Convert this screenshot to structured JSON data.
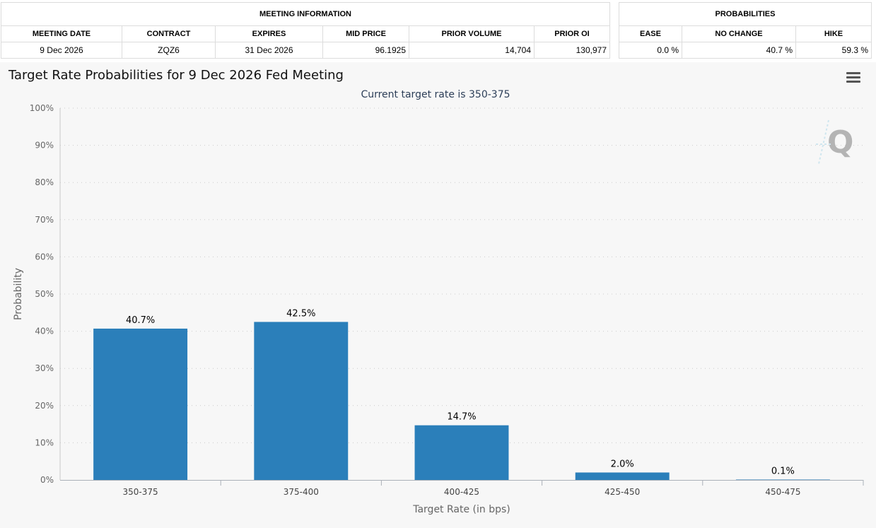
{
  "meeting_info": {
    "title": "MEETING INFORMATION",
    "headers": [
      "MEETING DATE",
      "CONTRACT",
      "EXPIRES",
      "MID PRICE",
      "PRIOR VOLUME",
      "PRIOR OI"
    ],
    "row": [
      "9 Dec 2026",
      "ZQZ6",
      "31 Dec 2026",
      "96.1925",
      "14,704",
      "130,977"
    ]
  },
  "probabilities": {
    "title": "PROBABILITIES",
    "headers": [
      "EASE",
      "NO CHANGE",
      "HIKE"
    ],
    "row": [
      "0.0 %",
      "40.7 %",
      "59.3 %"
    ]
  },
  "chart": {
    "title": "Target Rate Probabilities for 9 Dec 2026 Fed Meeting",
    "subtitle": "Current target rate is 350-375",
    "watermark_icon": "q-logo-icon",
    "menu_icon": "hamburger-menu-icon"
  },
  "chart_data": {
    "type": "bar",
    "title": "Target Rate Probabilities for 9 Dec 2026 Fed Meeting",
    "subtitle": "Current target rate is 350-375",
    "categories": [
      "350-375",
      "375-400",
      "400-425",
      "425-450",
      "450-475"
    ],
    "values": [
      40.7,
      42.5,
      14.7,
      2.0,
      0.1
    ],
    "data_labels": [
      "40.7%",
      "42.5%",
      "14.7%",
      "2.0%",
      "0.1%"
    ],
    "xlabel": "Target Rate (in bps)",
    "ylabel": "Probability",
    "ylim": [
      0,
      100
    ],
    "yticks": [
      "0%",
      "10%",
      "20%",
      "30%",
      "40%",
      "50%",
      "60%",
      "70%",
      "80%",
      "90%",
      "100%"
    ],
    "grid": true,
    "legend": false,
    "bar_color": "#2b7fba"
  }
}
